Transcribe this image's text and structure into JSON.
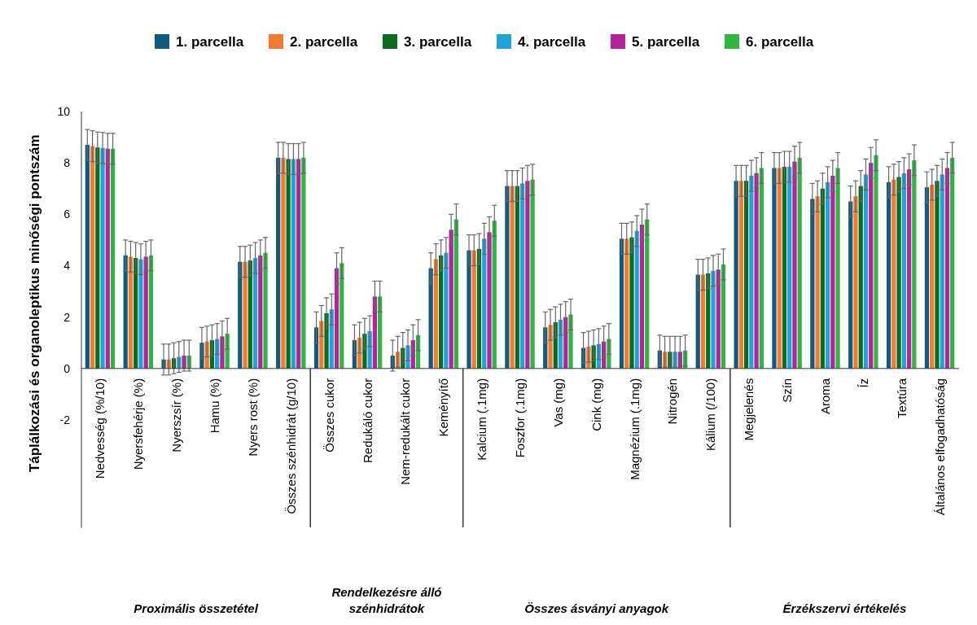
{
  "chart_data": {
    "type": "bar",
    "ylabel": "Táplálkozási és organoleptikus minőségi pontszám",
    "categories": [
      "Nedvesség (%/10)",
      "Nyersfehérje (%)",
      "Nyerszsír (%)",
      "Hamu (%)",
      "Nyers rost (%)",
      "Összes szénhidrát (g/10)",
      "Összes cukor",
      "Redukáló cukor",
      "Nem-redukált cukor",
      "Keményítő",
      "Kalcium (.1mg)",
      "Foszfor (.1mg)",
      "Vas (mg)",
      "Cink (mg)",
      "Magnézium (.1mg)",
      "Nitrogén",
      "Kálium (/100)",
      "Megjelenés",
      "Szín",
      "Aroma",
      "Íz",
      "Textúra",
      "Általános elfogadhatóság"
    ],
    "series": [
      {
        "name": "1. parcella",
        "color": "#0e5b7d",
        "values": [
          8.7,
          4.4,
          0.35,
          1.0,
          4.15,
          8.2,
          1.6,
          1.1,
          0.5,
          3.9,
          4.6,
          7.1,
          1.6,
          0.8,
          5.05,
          0.7,
          3.65,
          7.3,
          7.8,
          6.6,
          6.5,
          7.25,
          7.05
        ],
        "errors": [
          0.6,
          0.6,
          0.6,
          0.6,
          0.6,
          0.6,
          0.6,
          0.6,
          0.6,
          0.6,
          0.6,
          0.6,
          0.6,
          0.6,
          0.6,
          0.6,
          0.6,
          0.6,
          0.6,
          0.6,
          0.6,
          0.6,
          0.6
        ]
      },
      {
        "name": "2. parcella",
        "color": "#f47a30",
        "values": [
          8.65,
          4.35,
          0.35,
          1.05,
          4.15,
          8.2,
          1.85,
          1.2,
          0.65,
          4.25,
          4.6,
          7.1,
          1.7,
          0.85,
          5.05,
          0.65,
          3.65,
          7.3,
          7.8,
          6.7,
          6.7,
          7.35,
          7.15
        ],
        "errors": [
          0.6,
          0.6,
          0.6,
          0.6,
          0.6,
          0.6,
          0.6,
          0.6,
          0.6,
          0.6,
          0.6,
          0.6,
          0.6,
          0.6,
          0.6,
          0.6,
          0.6,
          0.6,
          0.6,
          0.6,
          0.6,
          0.6,
          0.6
        ]
      },
      {
        "name": "3. parcella",
        "color": "#0b6b1f",
        "values": [
          8.6,
          4.3,
          0.4,
          1.1,
          4.2,
          8.15,
          2.15,
          1.35,
          0.8,
          4.4,
          4.65,
          7.1,
          1.8,
          0.9,
          5.1,
          0.65,
          3.7,
          7.3,
          7.85,
          7.0,
          7.1,
          7.45,
          7.3
        ],
        "errors": [
          0.6,
          0.6,
          0.6,
          0.6,
          0.6,
          0.6,
          0.6,
          0.6,
          0.6,
          0.6,
          0.6,
          0.6,
          0.6,
          0.6,
          0.6,
          0.6,
          0.6,
          0.6,
          0.6,
          0.6,
          0.6,
          0.6,
          0.6
        ]
      },
      {
        "name": "4. parcella",
        "color": "#1ea4dc",
        "values": [
          8.58,
          4.25,
          0.45,
          1.15,
          4.3,
          8.15,
          2.3,
          1.45,
          0.9,
          4.5,
          5.05,
          7.2,
          1.9,
          0.95,
          5.35,
          0.65,
          3.8,
          7.5,
          7.85,
          7.25,
          7.55,
          7.6,
          7.55
        ],
        "errors": [
          0.6,
          0.6,
          0.6,
          0.6,
          0.6,
          0.6,
          0.6,
          0.6,
          0.6,
          0.6,
          0.6,
          0.6,
          0.6,
          0.6,
          0.6,
          0.6,
          0.6,
          0.6,
          0.6,
          0.6,
          0.6,
          0.6,
          0.6
        ]
      },
      {
        "name": "5. parcella",
        "color": "#b5239a",
        "values": [
          8.55,
          4.35,
          0.5,
          1.25,
          4.4,
          8.15,
          3.9,
          2.8,
          1.1,
          5.4,
          5.3,
          7.3,
          2.0,
          1.05,
          5.6,
          0.65,
          3.85,
          7.6,
          8.05,
          7.5,
          8.0,
          7.75,
          7.8
        ],
        "errors": [
          0.6,
          0.6,
          0.6,
          0.6,
          0.6,
          0.6,
          0.6,
          0.6,
          0.6,
          0.6,
          0.6,
          0.6,
          0.6,
          0.6,
          0.6,
          0.6,
          0.6,
          0.6,
          0.6,
          0.6,
          0.6,
          0.6,
          0.6
        ]
      },
      {
        "name": "6. parcella",
        "color": "#2fb544",
        "values": [
          8.55,
          4.4,
          0.5,
          1.35,
          4.5,
          8.2,
          4.1,
          2.8,
          1.3,
          5.8,
          5.75,
          7.35,
          2.1,
          1.15,
          5.8,
          0.7,
          4.05,
          7.8,
          8.2,
          7.8,
          8.3,
          8.1,
          8.2
        ],
        "errors": [
          0.6,
          0.6,
          0.6,
          0.6,
          0.6,
          0.6,
          0.6,
          0.6,
          0.6,
          0.6,
          0.6,
          0.6,
          0.6,
          0.6,
          0.6,
          0.6,
          0.6,
          0.6,
          0.6,
          0.6,
          0.6,
          0.6,
          0.6
        ]
      }
    ],
    "ylim": [
      -6.2,
      10
    ],
    "yticks": [
      -2,
      0,
      2,
      4,
      6,
      8,
      10
    ],
    "grid": false,
    "legend": "top",
    "annotations": [
      "Proximális összetétel",
      "Rendelkezésre álló\nszénhidrátok",
      "Összes ásványi anyagok",
      "Érzékszervi értékelés"
    ]
  }
}
